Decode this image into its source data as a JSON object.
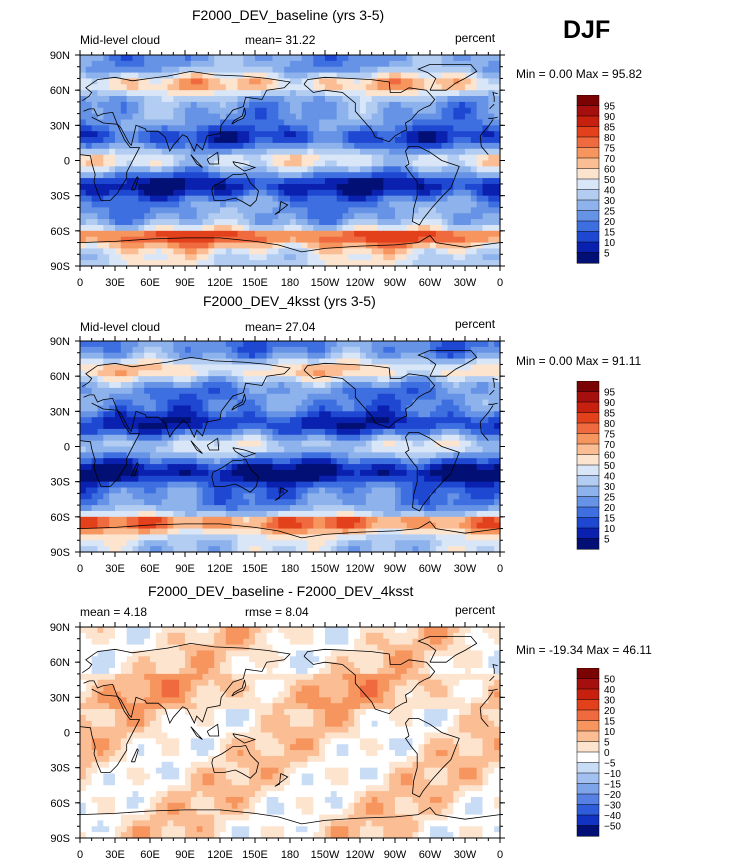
{
  "season_label": "DJF",
  "chart_data": [
    {
      "type": "heatmap",
      "title": "F2000_DEV_baseline (yrs 3-5)",
      "left_label": "Mid-level cloud",
      "center_label": "mean=   31.22",
      "units": "percent",
      "minmax_text": "Min =    0.00 Max =   95.82",
      "variable": "Mid-level cloud",
      "mean": 31.22,
      "min": 0.0,
      "max": 95.82,
      "x_ticks": [
        "0",
        "30E",
        "60E",
        "90E",
        "120E",
        "150E",
        "180",
        "150W",
        "120W",
        "90W",
        "60W",
        "30W",
        "0"
      ],
      "y_ticks": [
        "90N",
        "60N",
        "30N",
        "0",
        "30S",
        "60S",
        "90S"
      ],
      "colorbar_levels": [
        "95",
        "90",
        "85",
        "80",
        "75",
        "70",
        "60",
        "50",
        "40",
        "30",
        "25",
        "20",
        "15",
        "10",
        "5"
      ],
      "colorbar_colors": [
        "#7a0403",
        "#a50f0d",
        "#c8200e",
        "#e3401c",
        "#ef6a3e",
        "#f7955f",
        "#fbbd93",
        "#fde4cf",
        "#d8e6f8",
        "#b3cdf2",
        "#8db2ec",
        "#6693e6",
        "#3e6fe0",
        "#1f48d2",
        "#0a21b0",
        "#021075"
      ]
    },
    {
      "type": "heatmap",
      "title": "F2000_DEV_4ksst (yrs 3-5)",
      "left_label": "Mid-level cloud",
      "center_label": "mean=   27.04",
      "units": "percent",
      "minmax_text": "Min =    0.00 Max =   91.11",
      "variable": "Mid-level cloud",
      "mean": 27.04,
      "min": 0.0,
      "max": 91.11,
      "x_ticks": [
        "0",
        "30E",
        "60E",
        "90E",
        "120E",
        "150E",
        "180",
        "150W",
        "120W",
        "90W",
        "60W",
        "30W",
        "0"
      ],
      "y_ticks": [
        "90N",
        "60N",
        "30N",
        "0",
        "30S",
        "60S",
        "90S"
      ],
      "colorbar_levels": [
        "95",
        "90",
        "85",
        "80",
        "75",
        "70",
        "60",
        "50",
        "40",
        "30",
        "25",
        "20",
        "15",
        "10",
        "5"
      ],
      "colorbar_colors": [
        "#7a0403",
        "#a50f0d",
        "#c8200e",
        "#e3401c",
        "#ef6a3e",
        "#f7955f",
        "#fbbd93",
        "#fde4cf",
        "#d8e6f8",
        "#b3cdf2",
        "#8db2ec",
        "#6693e6",
        "#3e6fe0",
        "#1f48d2",
        "#0a21b0",
        "#021075"
      ]
    },
    {
      "type": "heatmap",
      "title": "F2000_DEV_baseline - F2000_DEV_4ksst",
      "left_label": "mean =    4.18",
      "center_label": "rmse =    8.04",
      "units": "percent",
      "minmax_text": "Min = -19.34 Max =   46.11",
      "mean": 4.18,
      "rmse": 8.04,
      "min": -19.34,
      "max": 46.11,
      "x_ticks": [
        "0",
        "30E",
        "60E",
        "90E",
        "120E",
        "150E",
        "180",
        "150W",
        "120W",
        "90W",
        "60W",
        "30W",
        "0"
      ],
      "y_ticks": [
        "90N",
        "60N",
        "30N",
        "0",
        "30S",
        "60S",
        "90S"
      ],
      "colorbar_levels": [
        "50",
        "40",
        "30",
        "20",
        "15",
        "10",
        "5",
        "0",
        "−5",
        "−10",
        "−15",
        "−20",
        "−30",
        "−40",
        "−50"
      ],
      "colorbar_colors": [
        "#7a0403",
        "#a50f0d",
        "#c8200e",
        "#e3401c",
        "#ef6a3e",
        "#f7955f",
        "#fbbd93",
        "#fde4cf",
        "#ffffff",
        "#c9dcf6",
        "#a2c1f0",
        "#7ea5ea",
        "#5680e3",
        "#2f5cdb",
        "#1232c4",
        "#021075"
      ]
    }
  ]
}
